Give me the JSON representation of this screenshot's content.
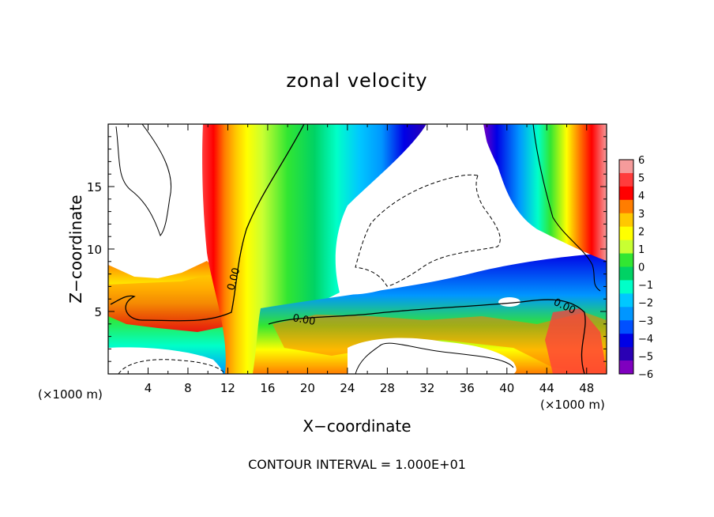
{
  "chart_data": {
    "type": "heatmap",
    "title": "zonal velocity",
    "xlabel": "X−coordinate",
    "ylabel": "Z−coordinate",
    "x_unit_left": "(×1000 m)",
    "x_unit_right": "(×1000 m)",
    "footer": "CONTOUR INTERVAL = 1.000E+01",
    "xlim": [
      0,
      50
    ],
    "ylim": [
      0,
      20
    ],
    "xticks": [
      4,
      8,
      12,
      16,
      20,
      24,
      28,
      32,
      36,
      40,
      44,
      48
    ],
    "yticks": [
      5,
      10,
      15
    ],
    "contour_label": "0.00",
    "colorbar": {
      "min": -6,
      "max": 6,
      "ticks": [
        "6",
        "5",
        "4",
        "3",
        "2",
        "1",
        "0",
        "−1",
        "−2",
        "−3",
        "−4",
        "−5",
        "−6"
      ],
      "colors": [
        "#f59b9b",
        "#ff3c3c",
        "#ff0000",
        "#ff7d00",
        "#ffc800",
        "#ffff00",
        "#c8ff32",
        "#32e632",
        "#00d264",
        "#00ffc8",
        "#00c8ff",
        "#0096ff",
        "#0050ff",
        "#0000e6",
        "#2a00b4",
        "#7f00bf"
      ]
    },
    "annotations": [
      "0.00",
      "0.00",
      "0.00"
    ]
  }
}
